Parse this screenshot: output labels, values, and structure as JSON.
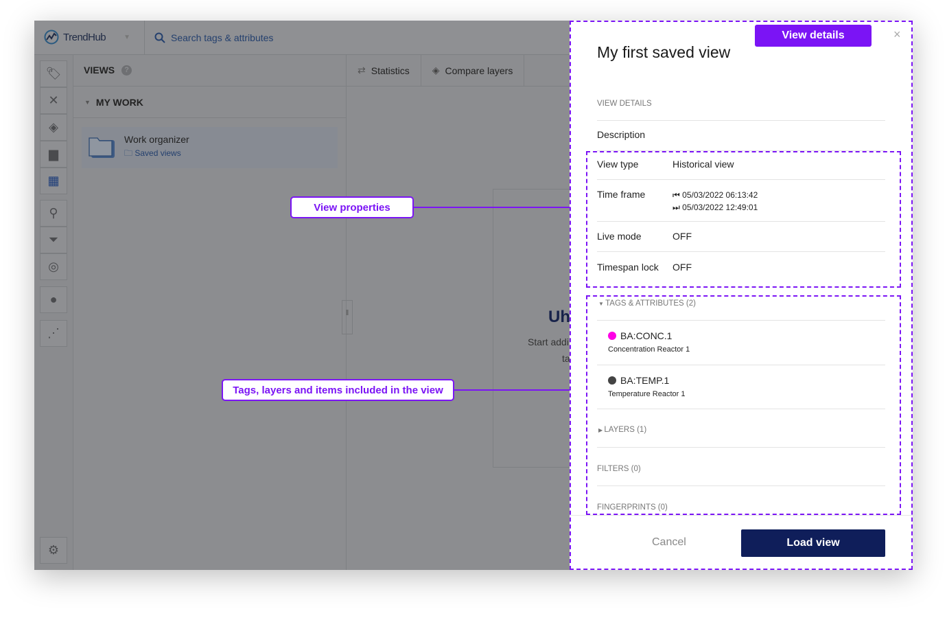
{
  "app": {
    "name": "TrendHub",
    "search_placeholder": "Search tags & attributes"
  },
  "rail": {
    "icons": [
      "tag-icon",
      "asset-icon",
      "layers-icon",
      "comment-icon",
      "views-icon",
      "search-icon",
      "filter-icon",
      "fingerprint-icon",
      "bulb-icon",
      "graph-icon",
      "gear-icon"
    ]
  },
  "views": {
    "title": "VIEWS",
    "help": "?",
    "section": "MY WORK",
    "card_title": "Work organizer",
    "card_sub": "Saved views"
  },
  "tabs": [
    {
      "label": "Statistics"
    },
    {
      "label": "Compare layers"
    }
  ],
  "empty": {
    "title": "Uh",
    "text1": "Start addi",
    "text2": "ta"
  },
  "annotations": {
    "view_properties": "View properties",
    "tags_included": "Tags, layers and items included in the view",
    "view_details": "View details"
  },
  "colors": {
    "annotation": "#7b14f5",
    "primary": "#0f1e5a",
    "tag1": "#ff00e6",
    "tag2": "#444444"
  },
  "panel": {
    "title": "My first saved view",
    "close": "×",
    "section_details": "VIEW DETAILS",
    "description_label": "Description",
    "props": [
      {
        "label": "View type",
        "value": "Historical view"
      },
      {
        "label": "Time frame",
        "start": "05/03/2022 06:13:42",
        "end": "05/03/2022 12:49:01"
      },
      {
        "label": "Live mode",
        "value": "OFF"
      },
      {
        "label": "Timespan lock",
        "value": "OFF"
      }
    ],
    "tags_header": "TAGS & ATTRIBUTES (2)",
    "tags": [
      {
        "name": "BA:CONC.1",
        "desc": "Concentration Reactor 1"
      },
      {
        "name": "BA:TEMP.1",
        "desc": "Temperature Reactor 1"
      }
    ],
    "layers": "LAYERS (1)",
    "filters": "FILTERS (0)",
    "fingerprints": "FINGERPRINTS (0)",
    "cancel": "Cancel",
    "load": "Load view"
  }
}
